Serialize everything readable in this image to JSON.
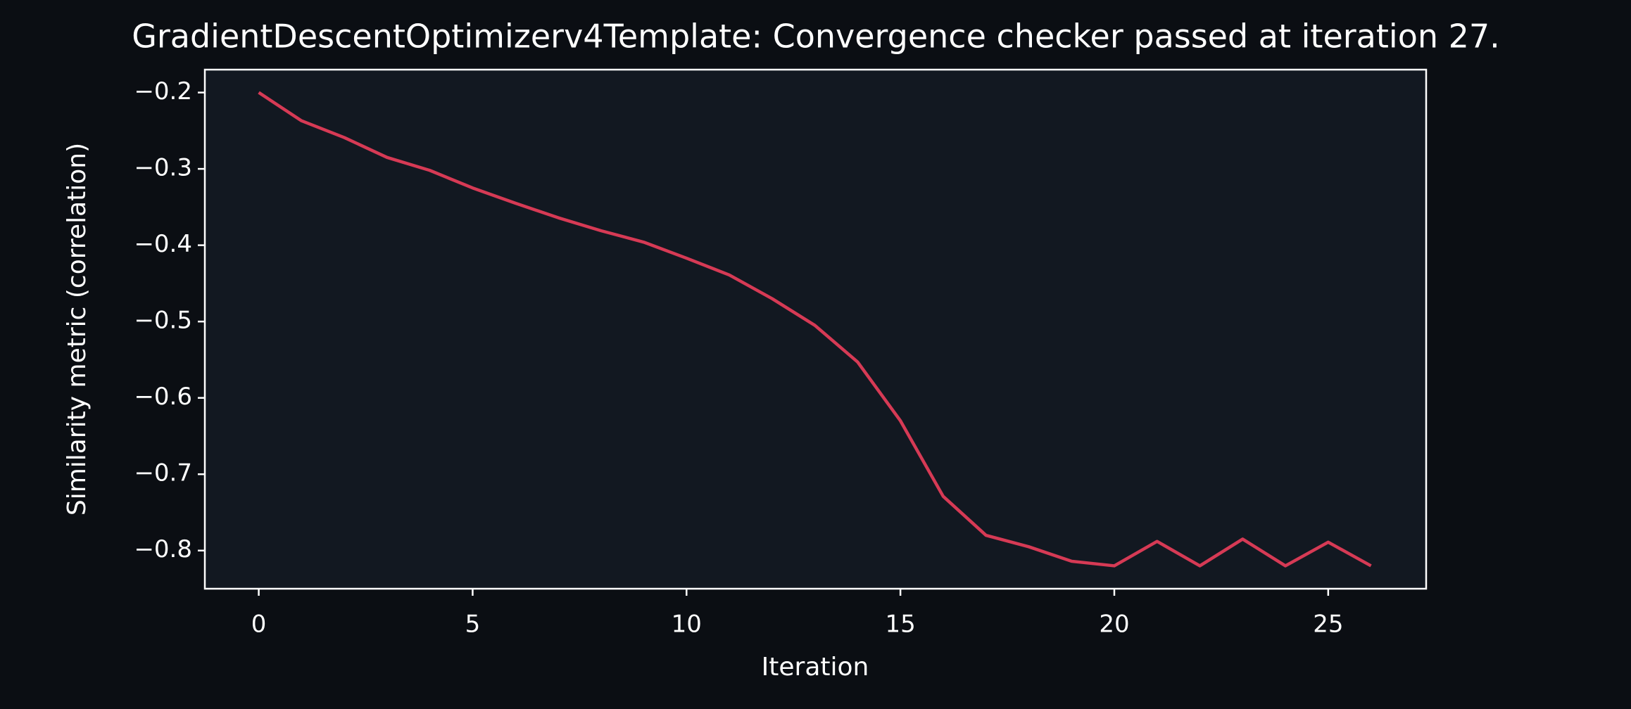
{
  "chart_data": {
    "type": "line",
    "title": "GradientDescentOptimizerv4Template: Convergence checker passed at iteration 27.",
    "x_label": "Iteration",
    "y_label": "Similarity metric (correlation)",
    "x": [
      0,
      1,
      2,
      3,
      4,
      5,
      6,
      7,
      8,
      9,
      10,
      11,
      12,
      13,
      14,
      15,
      16,
      17,
      18,
      19,
      20,
      21,
      22,
      23,
      24,
      25,
      26
    ],
    "series": [
      {
        "color": "#d63a55",
        "values": [
          -0.2,
          -0.237,
          -0.259,
          -0.285,
          -0.302,
          -0.325,
          -0.345,
          -0.364,
          -0.381,
          -0.396,
          -0.417,
          -0.439,
          -0.47,
          -0.505,
          -0.553,
          -0.63,
          -0.729,
          -0.78,
          -0.795,
          -0.814,
          -0.82,
          -0.788,
          -0.82,
          -0.785,
          -0.82,
          -0.789,
          -0.82
        ]
      }
    ],
    "xlim": [
      -1.26,
      27.29
    ],
    "ylim": [
      -0.85,
      -0.17
    ],
    "xticks": [
      0,
      5,
      10,
      15,
      20,
      25
    ],
    "yticks": [
      {
        "value": -0.2,
        "label": "−0.2"
      },
      {
        "value": -0.3,
        "label": "−0.3"
      },
      {
        "value": -0.4,
        "label": "−0.4"
      },
      {
        "value": -0.5,
        "label": "−0.5"
      },
      {
        "value": -0.6,
        "label": "−0.6"
      },
      {
        "value": -0.7,
        "label": "−0.7"
      },
      {
        "value": -0.8,
        "label": "−0.8"
      }
    ]
  }
}
